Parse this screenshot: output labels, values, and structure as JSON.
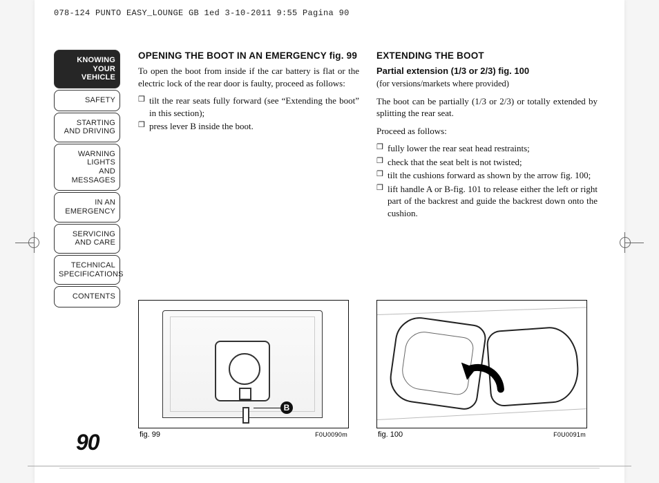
{
  "header": "078-124 PUNTO EASY_LOUNGE GB 1ed  3-10-2011  9:55  Pagina 90",
  "pageNumber": "90",
  "sidebar": {
    "items": [
      {
        "lines": [
          "KNOWING",
          "YOUR",
          "VEHICLE"
        ],
        "active": true
      },
      {
        "lines": [
          "SAFETY"
        ],
        "active": false
      },
      {
        "lines": [
          "STARTING",
          "AND DRIVING"
        ],
        "active": false
      },
      {
        "lines": [
          "WARNING LIGHTS",
          "AND MESSAGES"
        ],
        "active": false
      },
      {
        "lines": [
          "IN AN",
          "EMERGENCY"
        ],
        "active": false
      },
      {
        "lines": [
          "SERVICING",
          "AND CARE"
        ],
        "active": false
      },
      {
        "lines": [
          "TECHNICAL",
          "SPECIFICATIONS"
        ],
        "active": false
      },
      {
        "lines": [
          "CONTENTS"
        ],
        "active": false
      }
    ]
  },
  "leftCol": {
    "heading": "OPENING THE BOOT IN AN EMERGENCY fig. 99",
    "intro": "To open the boot from inside if the car battery is flat or the electric lock of the rear door is faulty, proceed as follows:",
    "bullets": [
      "tilt the rear seats fully forward (see “Extending the boot” in this section);",
      "press lever B inside the boot."
    ]
  },
  "rightCol": {
    "heading": "EXTENDING THE BOOT",
    "subheading": "Partial extension (1/3 or 2/3) fig. 100",
    "note": "(for versions/markets where provided)",
    "intro": "The boot can be partially (1/3 or 2/3) or totally extended by splitting the rear seat.",
    "proceed": "Proceed as follows:",
    "bullets": [
      "fully lower the rear seat head restraints;",
      "check that the seat belt is not twisted;",
      "tilt the cushions forward as shown by the arrow fig. 100;",
      "lift handle A or B-fig. 101 to release either the left or right part of the backrest and guide the backrest down onto the cushion."
    ]
  },
  "figures": {
    "left": {
      "caption": "fig. 99",
      "code": "F0U0090m",
      "label": "B"
    },
    "right": {
      "caption": "fig. 100",
      "code": "F0U0091m"
    }
  },
  "colors": {
    "text": "#111111",
    "tabActiveBg": "#262626",
    "tabActiveFg": "#ffffff",
    "border": "#333333"
  }
}
